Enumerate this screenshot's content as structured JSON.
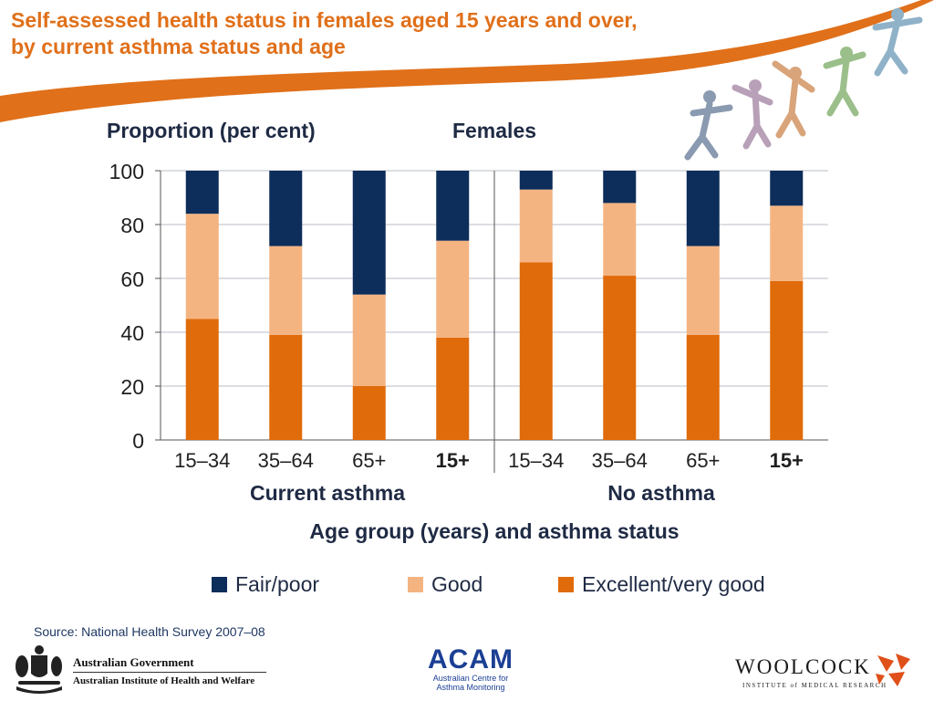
{
  "slide": {
    "title_line1": "Self-assessed health status in females aged 15 years and over,",
    "title_line2": "by current asthma status and age",
    "source": "Source: National Health Survey 2007–08",
    "accent_color": "#e0701a"
  },
  "logos": {
    "gov_line1": "Australian Government",
    "gov_line2": "Australian Institute of Health and Welfare",
    "acam_word": "ACAM",
    "acam_sub1": "Australian Centre for",
    "acam_sub2": "Asthma Monitoring",
    "woolcock_word": "WOOLCOCK",
    "woolcock_sub": "INSTITUTE of MEDICAL RESEARCH"
  },
  "chart_data": {
    "type": "bar",
    "stacked": true,
    "ylabel": "Proportion (per cent)",
    "panel_title": "Females",
    "xlabel": "Age group (years) and asthma status",
    "ylim": [
      0,
      100
    ],
    "yticks": [
      0,
      20,
      40,
      60,
      80,
      100
    ],
    "grid": true,
    "legend_position": "bottom",
    "groups": [
      {
        "label": "Current asthma",
        "categories": [
          "15–34",
          "35–64",
          "65+",
          "15+"
        ]
      },
      {
        "label": "No asthma",
        "categories": [
          "15–34",
          "35–64",
          "65+",
          "15+"
        ]
      }
    ],
    "bold_categories": [
      "15+"
    ],
    "series": [
      {
        "name": "Excellent/very good",
        "color": "#e06b0a",
        "values": [
          45,
          39,
          20,
          38,
          66,
          61,
          39,
          59
        ]
      },
      {
        "name": "Good",
        "color": "#f4b482",
        "values": [
          39,
          33,
          34,
          36,
          27,
          27,
          33,
          28
        ]
      },
      {
        "name": "Fair/poor",
        "color": "#0d2d5a",
        "values": [
          16,
          28,
          46,
          26,
          7,
          12,
          28,
          13
        ]
      }
    ],
    "legend_order": [
      "Fair/poor",
      "Good",
      "Excellent/very good"
    ]
  }
}
